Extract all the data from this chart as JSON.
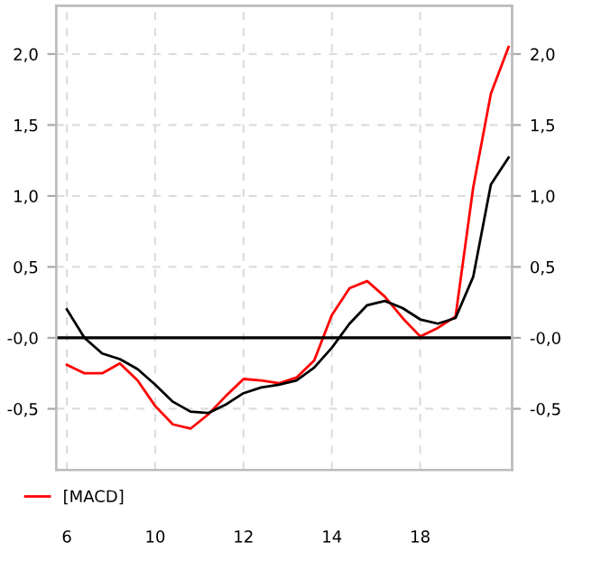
{
  "chart_data": {
    "type": "line",
    "categories": [
      "6",
      null,
      null,
      null,
      null,
      "10",
      null,
      null,
      null,
      null,
      "12",
      null,
      null,
      null,
      null,
      "14",
      null,
      null,
      null,
      null,
      "18",
      null,
      null,
      null,
      null,
      null
    ],
    "series": [
      {
        "name": "[MACD]",
        "color": "#ff0000",
        "values": [
          -0.19,
          -0.25,
          -0.25,
          -0.18,
          -0.3,
          -0.48,
          -0.61,
          -0.64,
          -0.54,
          -0.41,
          -0.29,
          -0.3,
          -0.32,
          -0.28,
          -0.16,
          0.16,
          0.35,
          0.4,
          0.29,
          0.14,
          0.01,
          0.07,
          0.15,
          1.06,
          1.72,
          2.05
        ]
      },
      {
        "color": "#000000",
        "values": [
          0.2,
          0.0,
          -0.11,
          -0.15,
          -0.22,
          -0.33,
          -0.45,
          -0.52,
          -0.53,
          -0.47,
          -0.39,
          -0.35,
          -0.33,
          -0.3,
          -0.21,
          -0.07,
          0.1,
          0.23,
          0.26,
          0.21,
          0.13,
          0.1,
          0.14,
          0.43,
          1.08,
          1.27
        ]
      }
    ],
    "ylim": [
      -0.93,
      2.34
    ],
    "yticks": [
      {
        "value": -0.5,
        "label": "-0,5"
      },
      {
        "value": 0,
        "label": "-0,0"
      },
      {
        "value": 0.5,
        "label": "0,5"
      },
      {
        "value": 1,
        "label": "1,0"
      },
      {
        "value": 1.5,
        "label": "1,5"
      },
      {
        "value": 2,
        "label": "2,0"
      }
    ],
    "y2lim": [
      -0.93,
      2.34
    ],
    "y2ticks": [
      {
        "value": -0.5,
        "label": "-0,5"
      },
      {
        "value": 0,
        "label": "-0,0"
      },
      {
        "value": 0.5,
        "label": "0,5"
      },
      {
        "value": 1,
        "label": "1,0"
      },
      {
        "value": 1.5,
        "label": "1,5"
      },
      {
        "value": 2,
        "label": "2,0"
      }
    ],
    "ref_lines": [
      {
        "axis": "y",
        "value": 0,
        "color": "#000000"
      }
    ],
    "grid": true,
    "legend": "bottom",
    "marker": "none",
    "line_style": "solid"
  }
}
